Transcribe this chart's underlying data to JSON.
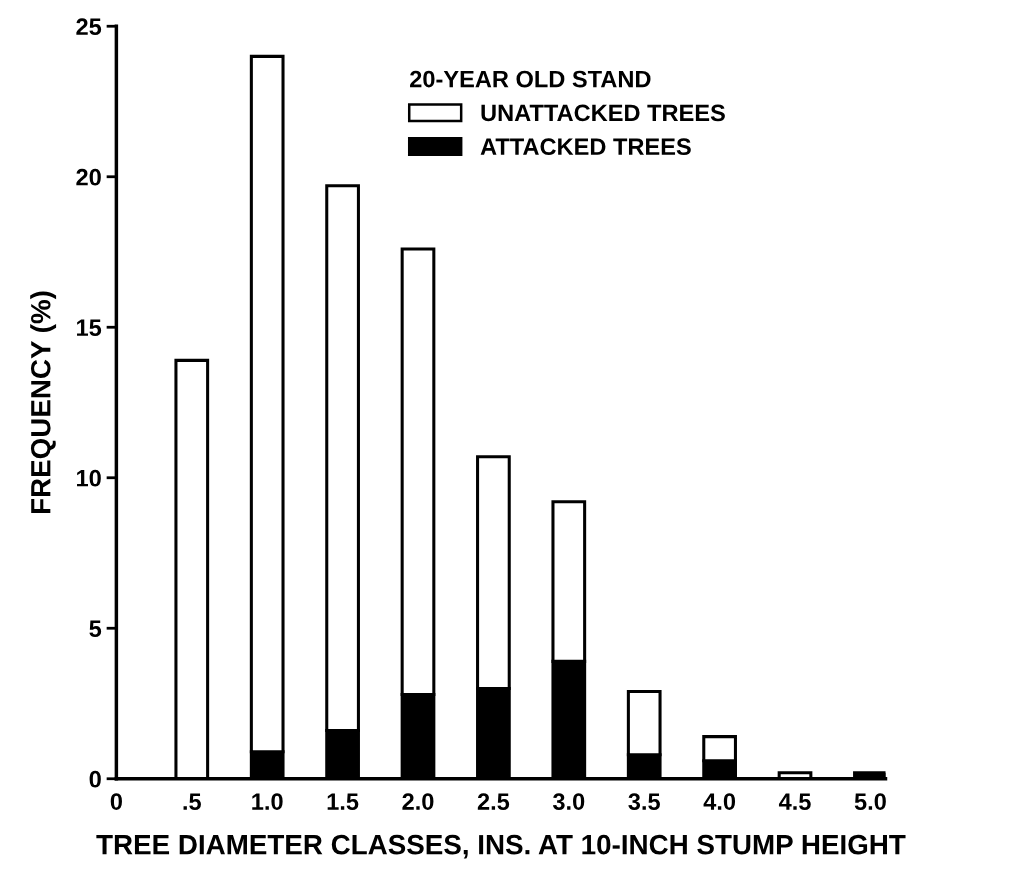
{
  "chart_data": {
    "type": "bar",
    "stacked": true,
    "xlabel": "TREE DIAMETER CLASSES, INS. AT 10-INCH STUMP HEIGHT",
    "ylabel": "FREQUENCY (%)",
    "legend_title": "20-YEAR OLD STAND",
    "legend": "top right",
    "x": [
      0.5,
      1.0,
      1.5,
      2.0,
      2.5,
      3.0,
      3.5,
      4.0,
      4.5,
      5.0
    ],
    "series": [
      {
        "name": "ATTACKED TREES",
        "color": "#000000",
        "values": [
          0,
          0.9,
          1.6,
          2.8,
          3.0,
          3.9,
          0.8,
          0.6,
          0,
          0.2
        ]
      },
      {
        "name": "UNATTACKED TREES",
        "color": "#ffffff",
        "values": [
          13.9,
          23.1,
          18.1,
          14.8,
          7.7,
          5.3,
          2.1,
          0.8,
          0.2,
          0
        ]
      }
    ],
    "xlim": [
      0,
      5.1
    ],
    "xticks": [
      0,
      {
        "value": 0.5,
        "label": ".5"
      },
      {
        "value": 1.0,
        "label": "1.0"
      },
      {
        "value": 1.5,
        "label": "1.5"
      },
      {
        "value": 2.0,
        "label": "2.0"
      },
      {
        "value": 2.5,
        "label": "2.5"
      },
      {
        "value": 3.0,
        "label": "3.0"
      },
      {
        "value": 3.5,
        "label": "3.5"
      },
      {
        "value": 4.0,
        "label": "4.0"
      },
      {
        "value": 4.5,
        "label": "4.5"
      },
      {
        "value": 5.0,
        "label": "5.0"
      }
    ],
    "ylim": [
      0,
      25
    ],
    "yticks": [
      0,
      5,
      10,
      15,
      20,
      25
    ],
    "grid": false
  }
}
